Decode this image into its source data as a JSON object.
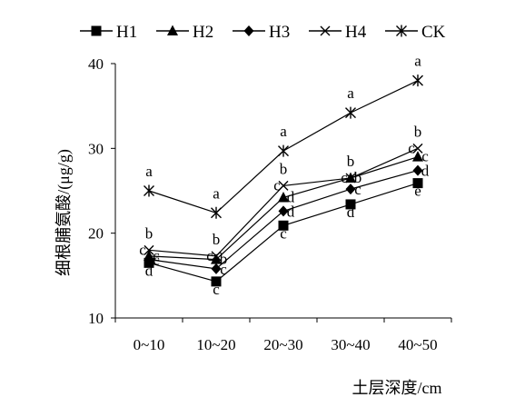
{
  "chart_data": {
    "type": "line",
    "title": "",
    "xlabel": "土层深度/cm",
    "ylabel": "细根脯氨酸/(μg/g)",
    "categories": [
      "0~10",
      "10~20",
      "20~30",
      "30~40",
      "40~50"
    ],
    "ylim": [
      10,
      40
    ],
    "yticks": [
      10,
      20,
      30,
      40
    ],
    "grid": false,
    "legend_position": "top",
    "series": [
      {
        "name": "H1",
        "marker": "square",
        "values": [
          16.5,
          14.3,
          20.9,
          23.4,
          25.9
        ],
        "labels": [
          "d",
          "c",
          "c",
          "d",
          "e"
        ]
      },
      {
        "name": "H2",
        "marker": "triangle",
        "values": [
          17.3,
          16.9,
          24.2,
          26.5,
          29.0
        ],
        "labels": [
          "c",
          "b",
          "d",
          "b",
          "c"
        ]
      },
      {
        "name": "H3",
        "marker": "diamond",
        "values": [
          16.9,
          15.8,
          22.6,
          25.2,
          27.4
        ],
        "labels": [
          "c",
          "c",
          "d",
          "c",
          "d"
        ]
      },
      {
        "name": "H4",
        "marker": "x",
        "values": [
          18.0,
          17.3,
          25.6,
          26.5,
          30.0
        ],
        "labels": [
          "c",
          "c",
          "c",
          "c",
          "c"
        ]
      },
      {
        "name": "CK",
        "marker": "asterisk",
        "values": [
          25.0,
          22.4,
          29.7,
          34.2,
          38.0
        ],
        "labels": [
          "a",
          "a",
          "a",
          "a",
          "a"
        ]
      }
    ],
    "group_letter_b": [
      "b",
      "b",
      "b",
      "b",
      "b"
    ]
  }
}
